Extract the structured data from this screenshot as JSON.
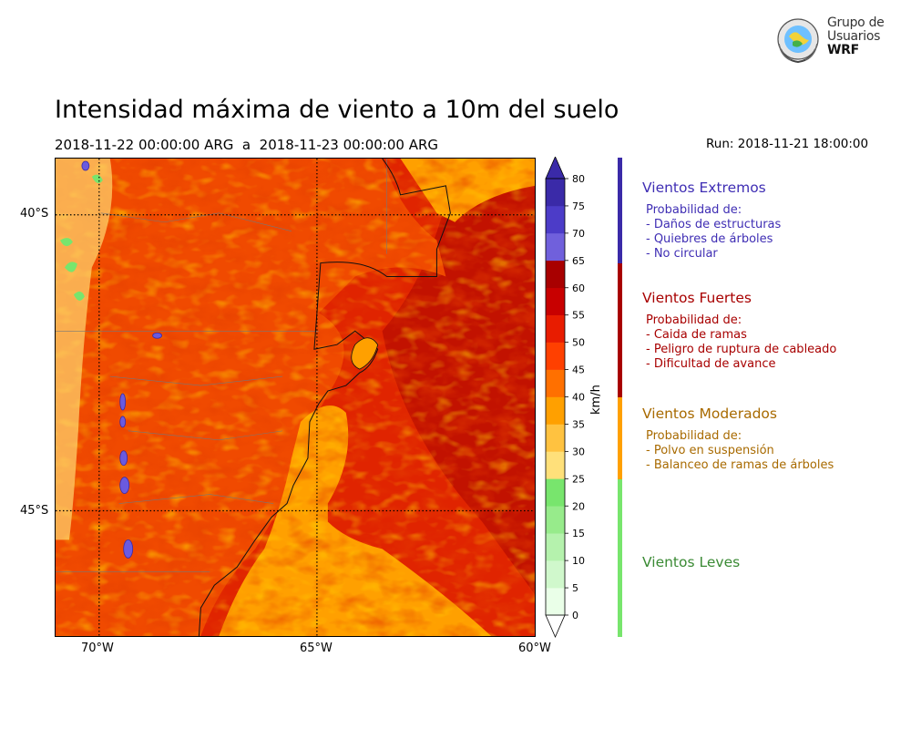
{
  "logo": {
    "line1": "Grupo de",
    "line2": "Usuarios",
    "line3": "WRF"
  },
  "title": "Intensidad máxima de viento a 10m del suelo",
  "dates": "2018-11-22 00:00:00 ARG  a  2018-11-23 00:00:00 ARG",
  "run": "Run: 2018-11-21 18:00:00",
  "map": {
    "lat_labels": [
      "40°S",
      "45°S"
    ],
    "lon_labels": [
      "70°W",
      "65°W",
      "60°W"
    ]
  },
  "colorbar": {
    "unit": "km/h",
    "ticks": [
      "0",
      "5",
      "10",
      "15",
      "20",
      "25",
      "30",
      "35",
      "40",
      "45",
      "50",
      "55",
      "60",
      "65",
      "70",
      "75",
      "80"
    ],
    "colors": [
      "#eaffe8",
      "#d0f8cc",
      "#b5f2ad",
      "#97eb8b",
      "#78e56d",
      "#ffe07a",
      "#ffc240",
      "#ffa000",
      "#ff7000",
      "#ff4000",
      "#e81c00",
      "#c80000",
      "#a80000",
      "#7060dc",
      "#4c3cc8",
      "#3a2aa8"
    ],
    "extend_low": "#ffffff",
    "extend_high": "#3a2aa8"
  },
  "categories": [
    {
      "title": "Vientos Extremos",
      "color": "#3f2eb4",
      "bar_color": "#3a2aa8",
      "desc_title": "Probabilidad de:",
      "items": [
        "- Daños de estructuras",
        "- Quiebres de árboles",
        "- No circular"
      ]
    },
    {
      "title": "Vientos Fuertes",
      "color": "#a80000",
      "bar_color": "#a80000",
      "desc_title": "Probabilidad de:",
      "items": [
        "- Caida de ramas",
        "- Peligro de ruptura de cableado",
        "- Dificultad de avance"
      ]
    },
    {
      "title": "Vientos Moderados",
      "color": "#a86a00",
      "bar_color": "#ffa000",
      "desc_title": "Probabilidad de:",
      "items": [
        "- Polvo en suspensión",
        "- Balanceo de ramas de árboles"
      ]
    },
    {
      "title": "Vientos Leves",
      "color": "#3a8a34",
      "bar_color": "#78e56d",
      "desc_title": "",
      "items": []
    }
  ]
}
